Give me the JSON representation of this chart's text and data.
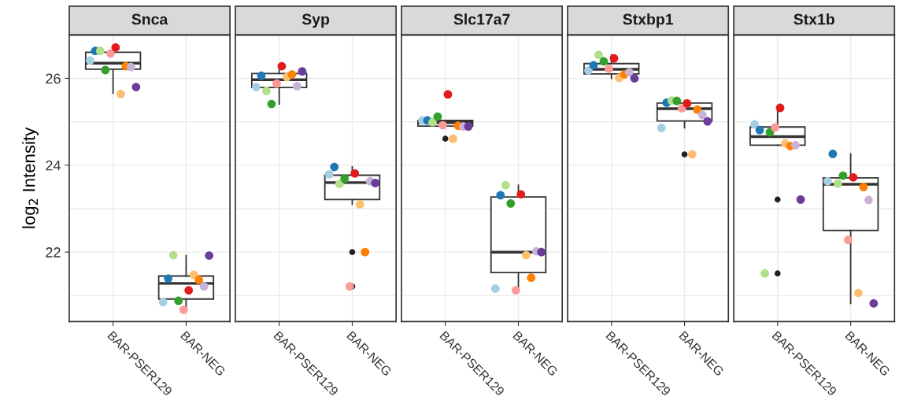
{
  "chart_data": [
    {
      "type": "box",
      "title": "Snca",
      "ylabel": "log$_{2}$ Intensity",
      "categories": [
        "BAR-PSER129",
        "BAR-NEG"
      ],
      "ylim": [
        20.4,
        27.0
      ],
      "yticks": [
        {
          "value": 21,
          "label": null
        },
        22,
        {
          "value": 23,
          "label": null
        },
        24,
        {
          "value": 25,
          "label": null
        },
        26,
        {
          "value": 27,
          "label": null
        }
      ],
      "grid": true,
      "legend": false,
      "boxes": [
        {
          "low": 25.66,
          "q1": 26.21,
          "median": 26.35,
          "q3": 26.6,
          "high": 26.71
        },
        {
          "low": 20.67,
          "q1": 20.92,
          "median": 21.28,
          "q3": 21.45,
          "high": 21.92
        }
      ],
      "series": [
        {
          "type": "scatter",
          "color": "#a6cee3",
          "x": [
            "BAR-PSER129",
            "BAR-NEG"
          ],
          "values": [
            26.41,
            20.85
          ]
        },
        {
          "type": "scatter",
          "color": "#1f78b4",
          "x": [
            "BAR-PSER129",
            "BAR-NEG"
          ],
          "values": [
            26.63,
            21.39
          ]
        },
        {
          "type": "scatter",
          "color": "#b2df8a",
          "x": [
            "BAR-PSER129",
            "BAR-NEG"
          ],
          "values": [
            26.63,
            21.93
          ]
        },
        {
          "type": "scatter",
          "color": "#33a02c",
          "x": [
            "BAR-PSER129",
            "BAR-NEG"
          ],
          "values": [
            26.19,
            20.88
          ]
        },
        {
          "type": "scatter",
          "color": "#fb9a99",
          "x": [
            "BAR-PSER129",
            "BAR-NEG"
          ],
          "values": [
            26.57,
            20.67
          ]
        },
        {
          "type": "scatter",
          "color": "#e31a1c",
          "x": [
            "BAR-PSER129",
            "BAR-NEG"
          ],
          "values": [
            26.71,
            21.12
          ]
        },
        {
          "type": "scatter",
          "color": "#fdbf6f",
          "x": [
            "BAR-PSER129",
            "BAR-NEG"
          ],
          "values": [
            25.64,
            21.48
          ]
        },
        {
          "type": "scatter",
          "color": "#ff7f00",
          "x": [
            "BAR-PSER129",
            "BAR-NEG"
          ],
          "values": [
            26.28,
            21.36
          ]
        },
        {
          "type": "scatter",
          "color": "#cab2d6",
          "x": [
            "BAR-PSER129",
            "BAR-NEG"
          ],
          "values": [
            26.26,
            21.21
          ]
        },
        {
          "type": "scatter",
          "color": "#6a3d9a",
          "x": [
            "BAR-PSER129",
            "BAR-NEG"
          ],
          "values": [
            25.8,
            21.92
          ]
        }
      ]
    },
    {
      "type": "box",
      "title": "Syp",
      "categories": [
        "BAR-PSER129",
        "BAR-NEG"
      ],
      "ylim": [
        20.4,
        27.0
      ],
      "yticks": [
        {
          "value": 21,
          "label": null
        },
        22,
        {
          "value": 23,
          "label": null
        },
        24,
        {
          "value": 25,
          "label": null
        },
        26,
        {
          "value": 27,
          "label": null
        }
      ],
      "grid": true,
      "legend": false,
      "tick_labels": "x",
      "boxes": [
        {
          "low": 25.41,
          "q1": 25.79,
          "median": 25.97,
          "q3": 26.11,
          "high": 26.28
        },
        {
          "low": 23.1,
          "q1": 23.21,
          "median": 23.6,
          "q3": 23.77,
          "high": 23.96,
          "outliers": [
            22.0,
            21.21
          ]
        }
      ],
      "series": [
        {
          "type": "scatter",
          "color": "#a6cee3",
          "x": [
            "BAR-PSER129",
            "BAR-NEG"
          ],
          "values": [
            25.8,
            23.79
          ]
        },
        {
          "type": "scatter",
          "color": "#1f78b4",
          "x": [
            "BAR-PSER129",
            "BAR-NEG"
          ],
          "values": [
            26.06,
            23.96
          ]
        },
        {
          "type": "scatter",
          "color": "#b2df8a",
          "x": [
            "BAR-PSER129",
            "BAR-NEG"
          ],
          "values": [
            25.71,
            23.57
          ]
        },
        {
          "type": "scatter",
          "color": "#33a02c",
          "x": [
            "BAR-PSER129",
            "BAR-NEG"
          ],
          "values": [
            25.41,
            23.69
          ]
        },
        {
          "type": "scatter",
          "color": "#fb9a99",
          "x": [
            "BAR-PSER129",
            "BAR-NEG"
          ],
          "values": [
            25.88,
            21.21
          ]
        },
        {
          "type": "scatter",
          "color": "#e31a1c",
          "x": [
            "BAR-PSER129",
            "BAR-NEG"
          ],
          "values": [
            26.28,
            23.81
          ]
        },
        {
          "type": "scatter",
          "color": "#fdbf6f",
          "x": [
            "BAR-PSER129",
            "BAR-NEG"
          ],
          "values": [
            26.03,
            23.1
          ]
        },
        {
          "type": "scatter",
          "color": "#ff7f00",
          "x": [
            "BAR-PSER129",
            "BAR-NEG"
          ],
          "values": [
            26.09,
            22.0
          ]
        },
        {
          "type": "scatter",
          "color": "#cab2d6",
          "x": [
            "BAR-PSER129",
            "BAR-NEG"
          ],
          "values": [
            25.82,
            23.63
          ]
        },
        {
          "type": "scatter",
          "color": "#6a3d9a",
          "x": [
            "BAR-PSER129",
            "BAR-NEG"
          ],
          "values": [
            26.16,
            23.59
          ]
        }
      ]
    },
    {
      "type": "box",
      "title": "Slc17a7",
      "categories": [
        "BAR-PSER129",
        "BAR-NEG"
      ],
      "ylim": [
        20.4,
        27.0
      ],
      "yticks": [
        {
          "value": 21,
          "label": null
        },
        22,
        {
          "value": 23,
          "label": null
        },
        24,
        {
          "value": 25,
          "label": null
        },
        26,
        {
          "value": 27,
          "label": null
        }
      ],
      "grid": true,
      "legend": false,
      "tick_labels": "x",
      "boxes": [
        {
          "low": 24.9,
          "q1": 24.9,
          "median": 24.98,
          "q3": 25.03,
          "high": 25.03,
          "outliers": [
            24.61
          ]
        },
        {
          "low": 21.12,
          "q1": 21.53,
          "median": 22.0,
          "q3": 23.27,
          "high": 23.54
        }
      ],
      "series": [
        {
          "type": "scatter",
          "color": "#a6cee3",
          "x": [
            "BAR-PSER129",
            "BAR-NEG"
          ],
          "values": [
            25.03,
            21.16
          ]
        },
        {
          "type": "scatter",
          "color": "#1f78b4",
          "x": [
            "BAR-PSER129",
            "BAR-NEG"
          ],
          "values": [
            25.03,
            23.31
          ]
        },
        {
          "type": "scatter",
          "color": "#b2df8a",
          "x": [
            "BAR-PSER129",
            "BAR-NEG"
          ],
          "values": [
            24.99,
            23.54
          ]
        },
        {
          "type": "scatter",
          "color": "#33a02c",
          "x": [
            "BAR-PSER129",
            "BAR-NEG"
          ],
          "values": [
            25.12,
            23.12
          ]
        },
        {
          "type": "scatter",
          "color": "#fb9a99",
          "x": [
            "BAR-PSER129",
            "BAR-NEG"
          ],
          "values": [
            24.92,
            21.12
          ]
        },
        {
          "type": "scatter",
          "color": "#e31a1c",
          "x": [
            "BAR-PSER129",
            "BAR-NEG"
          ],
          "values": [
            25.63,
            23.33
          ]
        },
        {
          "type": "scatter",
          "color": "#fdbf6f",
          "x": [
            "BAR-PSER129",
            "BAR-NEG"
          ],
          "values": [
            24.61,
            21.93
          ]
        },
        {
          "type": "scatter",
          "color": "#ff7f00",
          "x": [
            "BAR-PSER129",
            "BAR-NEG"
          ],
          "values": [
            24.91,
            21.41
          ]
        },
        {
          "type": "scatter",
          "color": "#cab2d6",
          "x": [
            "BAR-PSER129",
            "BAR-NEG"
          ],
          "values": [
            24.89,
            22.02
          ]
        },
        {
          "type": "scatter",
          "color": "#6a3d9a",
          "x": [
            "BAR-PSER129",
            "BAR-NEG"
          ],
          "values": [
            24.89,
            22.0
          ]
        }
      ]
    },
    {
      "type": "box",
      "title": "Stxbp1",
      "categories": [
        "BAR-PSER129",
        "BAR-NEG"
      ],
      "ylim": [
        20.4,
        27.0
      ],
      "yticks": [
        {
          "value": 21,
          "label": null
        },
        22,
        {
          "value": 23,
          "label": null
        },
        24,
        {
          "value": 25,
          "label": null
        },
        26,
        {
          "value": 27,
          "label": null
        }
      ],
      "grid": true,
      "legend": false,
      "tick_labels": "x",
      "boxes": [
        {
          "low": 26.0,
          "q1": 26.1,
          "median": 26.21,
          "q3": 26.34,
          "high": 26.54
        },
        {
          "low": 24.86,
          "q1": 25.02,
          "median": 25.3,
          "q3": 25.43,
          "high": 25.49,
          "outliers": [
            24.25
          ]
        }
      ],
      "series": [
        {
          "type": "scatter",
          "color": "#a6cee3",
          "x": [
            "BAR-PSER129",
            "BAR-NEG"
          ],
          "values": [
            26.18,
            24.86
          ]
        },
        {
          "type": "scatter",
          "color": "#1f78b4",
          "x": [
            "BAR-PSER129",
            "BAR-NEG"
          ],
          "values": [
            26.3,
            25.44
          ]
        },
        {
          "type": "scatter",
          "color": "#b2df8a",
          "x": [
            "BAR-PSER129",
            "BAR-NEG"
          ],
          "values": [
            26.54,
            25.49
          ]
        },
        {
          "type": "scatter",
          "color": "#33a02c",
          "x": [
            "BAR-PSER129",
            "BAR-NEG"
          ],
          "values": [
            26.39,
            25.48
          ]
        },
        {
          "type": "scatter",
          "color": "#fb9a99",
          "x": [
            "BAR-PSER129",
            "BAR-NEG"
          ],
          "values": [
            26.22,
            25.31
          ]
        },
        {
          "type": "scatter",
          "color": "#e31a1c",
          "x": [
            "BAR-PSER129",
            "BAR-NEG"
          ],
          "values": [
            26.46,
            25.42
          ]
        },
        {
          "type": "scatter",
          "color": "#fdbf6f",
          "x": [
            "BAR-PSER129",
            "BAR-NEG"
          ],
          "values": [
            26.01,
            24.25
          ]
        },
        {
          "type": "scatter",
          "color": "#ff7f00",
          "x": [
            "BAR-PSER129",
            "BAR-NEG"
          ],
          "values": [
            26.09,
            25.28
          ]
        },
        {
          "type": "scatter",
          "color": "#cab2d6",
          "x": [
            "BAR-PSER129",
            "BAR-NEG"
          ],
          "values": [
            26.14,
            25.16
          ]
        },
        {
          "type": "scatter",
          "color": "#6a3d9a",
          "x": [
            "BAR-PSER129",
            "BAR-NEG"
          ],
          "values": [
            26.0,
            25.01
          ]
        }
      ]
    },
    {
      "type": "box",
      "title": "Stx1b",
      "categories": [
        "BAR-PSER129",
        "BAR-NEG"
      ],
      "ylim": [
        20.4,
        27.0
      ],
      "yticks": [
        {
          "value": 21,
          "label": null
        },
        22,
        {
          "value": 23,
          "label": null
        },
        24,
        {
          "value": 25,
          "label": null
        },
        26,
        {
          "value": 27,
          "label": null
        }
      ],
      "grid": true,
      "legend": false,
      "tick_labels": "x",
      "boxes": [
        {
          "low": 24.46,
          "q1": 24.46,
          "median": 24.66,
          "q3": 24.88,
          "high": 25.32,
          "outliers": [
            23.21,
            21.51
          ]
        },
        {
          "low": 20.82,
          "q1": 22.5,
          "median": 23.56,
          "q3": 23.71,
          "high": 24.26
        }
      ],
      "series": [
        {
          "type": "scatter",
          "color": "#a6cee3",
          "x": [
            "BAR-PSER129",
            "BAR-NEG"
          ],
          "values": [
            24.94,
            23.63
          ]
        },
        {
          "type": "scatter",
          "color": "#1f78b4",
          "x": [
            "BAR-PSER129",
            "BAR-NEG"
          ],
          "values": [
            24.81,
            24.26
          ]
        },
        {
          "type": "scatter",
          "color": "#b2df8a",
          "x": [
            "BAR-PSER129",
            "BAR-NEG"
          ],
          "values": [
            21.51,
            23.58
          ]
        },
        {
          "type": "scatter",
          "color": "#33a02c",
          "x": [
            "BAR-PSER129",
            "BAR-NEG"
          ],
          "values": [
            24.76,
            23.76
          ]
        },
        {
          "type": "scatter",
          "color": "#fb9a99",
          "x": [
            "BAR-PSER129",
            "BAR-NEG"
          ],
          "values": [
            24.87,
            22.28
          ]
        },
        {
          "type": "scatter",
          "color": "#e31a1c",
          "x": [
            "BAR-PSER129",
            "BAR-NEG"
          ],
          "values": [
            25.32,
            23.72
          ]
        },
        {
          "type": "scatter",
          "color": "#fdbf6f",
          "x": [
            "BAR-PSER129",
            "BAR-NEG"
          ],
          "values": [
            24.5,
            21.06
          ]
        },
        {
          "type": "scatter",
          "color": "#ff7f00",
          "x": [
            "BAR-PSER129",
            "BAR-NEG"
          ],
          "values": [
            24.44,
            23.5
          ]
        },
        {
          "type": "scatter",
          "color": "#cab2d6",
          "x": [
            "BAR-PSER129",
            "BAR-NEG"
          ],
          "values": [
            24.46,
            23.2
          ]
        },
        {
          "type": "scatter",
          "color": "#6a3d9a",
          "x": [
            "BAR-PSER129",
            "BAR-NEG"
          ],
          "values": [
            23.21,
            20.82
          ]
        }
      ]
    }
  ]
}
